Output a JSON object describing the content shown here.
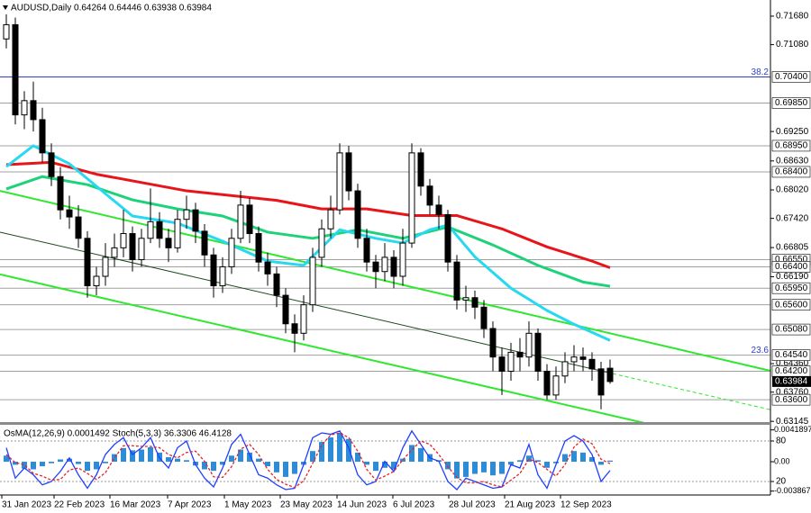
{
  "chart_data": [
    {
      "type": "candlestick",
      "title": "AUDUSD,Daily  0.64264 0.64446 0.63938 0.63984",
      "up_color": "#ffffff",
      "down_color": "#000000",
      "xlim": [
        -0.7,
        84.8
      ],
      "xticks": [
        {
          "value": -0.5,
          "label": "31 Jan 2023"
        },
        {
          "value": 5.3,
          "label": "22 Feb 2023"
        },
        {
          "value": 11.5,
          "label": "16 Mar 2023"
        },
        {
          "value": 17.9,
          "label": "7 Apr 2023"
        },
        {
          "value": 24.2,
          "label": "1 May 2023"
        },
        {
          "value": 30.4,
          "label": "23 May 2023"
        },
        {
          "value": 36.7,
          "label": "14 Jun 2023"
        },
        {
          "value": 42.9,
          "label": "6 Jul 2023"
        },
        {
          "value": 49.1,
          "label": "28 Jul 2023"
        },
        {
          "value": 55.3,
          "label": "21 Aug 2023"
        },
        {
          "value": 61.5,
          "label": "12 Sep 2023"
        }
      ],
      "ylim": [
        0.6311,
        0.7202
      ],
      "yticks": [
        {
          "value": 0.7168,
          "label": "0.71680"
        },
        {
          "value": 0.7108,
          "label": "0.71080"
        },
        {
          "value": 0.6925,
          "label": "0.69250"
        },
        {
          "value": 0.6863,
          "label": "0.68630"
        },
        {
          "value": 0.6802,
          "label": "0.68020"
        },
        {
          "value": 0.6742,
          "label": "0.67420"
        },
        {
          "value": 0.66805,
          "label": "0.66805"
        },
        {
          "value": 0.6619,
          "label": "0.66190"
        },
        {
          "value": 0.6436,
          "label": "0.64360"
        },
        {
          "value": 0.6376,
          "label": "0.63760"
        },
        {
          "value": 0.63145,
          "label": "0.63145"
        }
      ],
      "levels": [
        {
          "value": 0.704,
          "label": "0.70400",
          "color": "#2c3fcf"
        },
        {
          "value": 0.6985,
          "label": "0.69850",
          "color": "#a0a0a0"
        },
        {
          "value": 0.6895,
          "label": "0.68950",
          "color": "#a0a0a0"
        },
        {
          "value": 0.684,
          "label": "0.68400",
          "color": "#a0a0a0"
        },
        {
          "value": 0.6655,
          "label": "0.66550",
          "color": "#a0a0a0"
        },
        {
          "value": 0.664,
          "label": "0.66400",
          "color": "#a0a0a0"
        },
        {
          "value": 0.6595,
          "label": "0.65950",
          "color": "#a0a0a0"
        },
        {
          "value": 0.656,
          "label": "0.65600",
          "color": "#a0a0a0"
        },
        {
          "value": 0.6508,
          "label": "0.65080",
          "color": "#a0a0a0"
        },
        {
          "value": 0.6454,
          "label": "0.64540",
          "color": "#a0a0a0"
        },
        {
          "value": 0.642,
          "label": "0.64200",
          "color": "#a0a0a0"
        },
        {
          "value": 0.636,
          "label": "0.63600",
          "color": "#a0a0a0"
        }
      ],
      "last_price": {
        "value": 0.63984,
        "label": "0.63984"
      },
      "annotations": [
        {
          "label": "38.2",
          "value": 0.704,
          "color": "#2c3fcf"
        },
        {
          "label": "23.6",
          "value": 0.6454,
          "color": "#2c3fcf"
        }
      ],
      "channels": [
        {
          "color": "#2ee82e",
          "width": 2,
          "x": [
            -0.7,
            84.8
          ],
          "values": [
            0.68,
            0.6421
          ]
        },
        {
          "color": "#1d4a1d",
          "width": 1,
          "x": [
            -0.7,
            67.3
          ],
          "values": [
            0.6713,
            0.6415
          ]
        },
        {
          "color": "#2ee82e",
          "width": 1,
          "dashed": true,
          "x": [
            67.3,
            84.8
          ],
          "values": [
            0.6415,
            0.6339
          ]
        },
        {
          "color": "#2ee82e",
          "width": 2,
          "x": [
            -0.7,
            70.8
          ],
          "values": [
            0.6624,
            0.6311
          ]
        }
      ],
      "moving_averages": [
        {
          "color": "#e8141a",
          "x": [
            0,
            5,
            10,
            20,
            30,
            35,
            40,
            45,
            50,
            55,
            60,
            65,
            67
          ],
          "values": [
            0.6855,
            0.686,
            0.6835,
            0.68,
            0.678,
            0.6762,
            0.6762,
            0.6748,
            0.6748,
            0.672,
            0.6682,
            0.6652,
            0.6638
          ]
        },
        {
          "color": "#1ed27a",
          "x": [
            0,
            4,
            9,
            14,
            19,
            24,
            29,
            34,
            39,
            44,
            49,
            54,
            59,
            64,
            67
          ],
          "values": [
            0.6804,
            0.683,
            0.6813,
            0.6781,
            0.6762,
            0.6747,
            0.6713,
            0.67,
            0.6718,
            0.67,
            0.6724,
            0.6686,
            0.6643,
            0.6608,
            0.6599
          ]
        },
        {
          "color": "#26d9f0",
          "x": [
            0,
            3,
            7,
            11,
            14,
            19,
            24,
            29,
            33,
            37,
            41,
            44,
            47,
            49,
            52,
            56,
            60,
            63,
            67
          ],
          "values": [
            0.6851,
            0.6895,
            0.6857,
            0.6794,
            0.6747,
            0.6732,
            0.6694,
            0.6652,
            0.6643,
            0.6718,
            0.67,
            0.669,
            0.6718,
            0.6728,
            0.6661,
            0.6595,
            0.6548,
            0.6519,
            0.6485
          ]
        }
      ],
      "x": [
        0,
        1,
        2,
        3,
        4,
        5,
        6,
        7,
        8,
        9,
        10,
        11,
        12,
        13,
        14,
        15,
        16,
        17,
        18,
        19,
        20,
        21,
        22,
        23,
        24,
        25,
        26,
        27,
        28,
        29,
        30,
        31,
        32,
        33,
        34,
        35,
        36,
        37,
        38,
        39,
        40,
        41,
        42,
        43,
        44,
        45,
        46,
        47,
        48,
        49,
        50,
        51,
        52,
        53,
        54,
        55,
        56,
        57,
        58,
        59,
        60,
        61,
        62,
        63,
        64,
        65,
        66,
        67
      ],
      "ohlc": [
        [
          0.712,
          0.7172,
          0.71,
          0.715
        ],
        [
          0.715,
          0.7165,
          0.694,
          0.696
        ],
        [
          0.696,
          0.701,
          0.693,
          0.699
        ],
        [
          0.699,
          0.703,
          0.6925,
          0.695
        ],
        [
          0.695,
          0.6975,
          0.686,
          0.688
        ],
        [
          0.688,
          0.69,
          0.681,
          0.683
        ],
        [
          0.683,
          0.685,
          0.674,
          0.676
        ],
        [
          0.676,
          0.679,
          0.672,
          0.6745
        ],
        [
          0.6745,
          0.677,
          0.668,
          0.67
        ],
        [
          0.67,
          0.6715,
          0.6575,
          0.66
        ],
        [
          0.66,
          0.664,
          0.658,
          0.662
        ],
        [
          0.662,
          0.669,
          0.66,
          0.666
        ],
        [
          0.666,
          0.671,
          0.664,
          0.668
        ],
        [
          0.668,
          0.676,
          0.666,
          0.671
        ],
        [
          0.671,
          0.6725,
          0.663,
          0.6655
        ],
        [
          0.6655,
          0.672,
          0.664,
          0.67
        ],
        [
          0.67,
          0.6805,
          0.669,
          0.6735
        ],
        [
          0.6735,
          0.6755,
          0.668,
          0.67
        ],
        [
          0.67,
          0.672,
          0.665,
          0.668
        ],
        [
          0.668,
          0.676,
          0.667,
          0.674
        ],
        [
          0.674,
          0.679,
          0.672,
          0.676
        ],
        [
          0.676,
          0.6775,
          0.669,
          0.6715
        ],
        [
          0.6715,
          0.673,
          0.664,
          0.6665
        ],
        [
          0.6665,
          0.668,
          0.6575,
          0.66
        ],
        [
          0.66,
          0.666,
          0.6585,
          0.664
        ],
        [
          0.664,
          0.672,
          0.6625,
          0.67
        ],
        [
          0.67,
          0.68,
          0.669,
          0.677
        ],
        [
          0.677,
          0.6785,
          0.669,
          0.671
        ],
        [
          0.671,
          0.6725,
          0.663,
          0.665
        ],
        [
          0.665,
          0.667,
          0.66,
          0.6625
        ],
        [
          0.6625,
          0.664,
          0.6555,
          0.658
        ],
        [
          0.658,
          0.6595,
          0.65,
          0.652
        ],
        [
          0.652,
          0.654,
          0.646,
          0.65
        ],
        [
          0.65,
          0.658,
          0.6485,
          0.656
        ],
        [
          0.656,
          0.668,
          0.6545,
          0.666
        ],
        [
          0.666,
          0.674,
          0.664,
          0.672
        ],
        [
          0.672,
          0.679,
          0.67,
          0.676
        ],
        [
          0.676,
          0.69,
          0.675,
          0.688
        ],
        [
          0.688,
          0.6895,
          0.678,
          0.68
        ],
        [
          0.68,
          0.6815,
          0.668,
          0.67
        ],
        [
          0.67,
          0.672,
          0.663,
          0.665
        ],
        [
          0.665,
          0.6665,
          0.6595,
          0.663
        ],
        [
          0.663,
          0.669,
          0.661,
          0.666
        ],
        [
          0.666,
          0.6675,
          0.6595,
          0.662
        ],
        [
          0.662,
          0.672,
          0.66,
          0.669
        ],
        [
          0.669,
          0.69,
          0.668,
          0.688
        ],
        [
          0.688,
          0.689,
          0.679,
          0.681
        ],
        [
          0.681,
          0.6825,
          0.675,
          0.677
        ],
        [
          0.677,
          0.679,
          0.672,
          0.675
        ],
        [
          0.675,
          0.676,
          0.663,
          0.665
        ],
        [
          0.665,
          0.6665,
          0.655,
          0.657
        ],
        [
          0.657,
          0.66,
          0.6545,
          0.6575
        ],
        [
          0.6575,
          0.659,
          0.653,
          0.6555
        ],
        [
          0.6555,
          0.657,
          0.649,
          0.651
        ],
        [
          0.651,
          0.6525,
          0.642,
          0.645
        ],
        [
          0.645,
          0.647,
          0.637,
          0.642
        ],
        [
          0.642,
          0.648,
          0.64,
          0.646
        ],
        [
          0.646,
          0.649,
          0.642,
          0.645
        ],
        [
          0.645,
          0.6525,
          0.643,
          0.65
        ],
        [
          0.65,
          0.651,
          0.64,
          0.642
        ],
        [
          0.642,
          0.6435,
          0.636,
          0.637
        ],
        [
          0.637,
          0.643,
          0.636,
          0.641
        ],
        [
          0.641,
          0.646,
          0.6395,
          0.644
        ],
        [
          0.644,
          0.6475,
          0.642,
          0.645
        ],
        [
          0.645,
          0.647,
          0.642,
          0.6445
        ],
        [
          0.6445,
          0.646,
          0.64,
          0.6425
        ],
        [
          0.6425,
          0.644,
          0.634,
          0.637
        ],
        [
          0.64264,
          0.64446,
          0.63938,
          0.63984
        ]
      ]
    },
    {
      "type": "oscillator",
      "title": "OsMA(12,26,9) 0.0001492  Stoch(5,3,3) 36.3306 46.4128",
      "xlim": [
        -0.7,
        84.8
      ],
      "ylim": [
        -0.00438,
        0.00474
      ],
      "yticks": [
        0.0041897,
        {
          "value": 0,
          "label": "0.00"
        },
        -0.003867
      ],
      "y2lim": [
        0,
        102.7
      ],
      "y2ticks": [
        80,
        20
      ],
      "x": [
        0,
        1,
        2,
        3,
        4,
        5,
        6,
        7,
        8,
        9,
        10,
        11,
        12,
        13,
        14,
        15,
        16,
        17,
        18,
        19,
        20,
        21,
        22,
        23,
        24,
        25,
        26,
        27,
        28,
        29,
        30,
        31,
        32,
        33,
        34,
        35,
        36,
        37,
        38,
        39,
        40,
        41,
        42,
        43,
        44,
        45,
        46,
        47,
        48,
        49,
        50,
        51,
        52,
        53,
        54,
        55,
        56,
        57,
        58,
        59,
        60,
        61,
        62,
        63,
        64,
        65,
        66,
        67
      ],
      "series": [
        {
          "type": "bar",
          "color": "#2e8bd6",
          "values": [
            0.0008,
            -0.0004,
            -0.0009,
            -0.001,
            -0.0006,
            -0.0002,
            0.0003,
            0.0004,
            -0.0003,
            -0.0012,
            -0.001,
            -0.0002,
            0.001,
            0.0018,
            0.0015,
            0.0016,
            0.0019,
            0.0012,
            0.0006,
            0.0004,
            0.0002,
            -0.0005,
            -0.001,
            -0.0012,
            -0.0004,
            0.0008,
            0.0016,
            0.0012,
            0.0004,
            -0.0006,
            -0.0014,
            -0.002,
            -0.0016,
            -0.0004,
            0.0014,
            0.0026,
            0.0032,
            0.0038,
            0.003,
            0.0012,
            -0.0004,
            -0.0012,
            -0.0008,
            -0.001,
            0.0004,
            0.0022,
            0.0018,
            0.001,
            0.0002,
            -0.001,
            -0.0022,
            -0.002,
            -0.0016,
            -0.0014,
            -0.0018,
            -0.0016,
            -0.0004,
            0.0002,
            0.0008,
            0.0002,
            -0.0008,
            -0.0002,
            0.001,
            0.0014,
            0.0012,
            0.0006,
            -0.0004,
            0.0001492
          ]
        },
        {
          "type": "line",
          "axis": "y2",
          "color": "#1f3fff",
          "values": [
            70,
            25,
            40,
            30,
            15,
            20,
            35,
            55,
            30,
            10,
            30,
            60,
            75,
            85,
            60,
            70,
            85,
            55,
            40,
            70,
            80,
            45,
            25,
            12,
            40,
            75,
            90,
            60,
            30,
            25,
            15,
            8,
            10,
            45,
            85,
            92,
            90,
            95,
            70,
            30,
            15,
            20,
            50,
            35,
            70,
            95,
            75,
            55,
            50,
            20,
            8,
            25,
            20,
            15,
            10,
            12,
            45,
            40,
            75,
            30,
            10,
            45,
            80,
            88,
            80,
            60,
            20,
            36.3306
          ]
        },
        {
          "type": "line",
          "axis": "y2",
          "dashed": true,
          "color": "#e0262a",
          "values": [
            60,
            48,
            45,
            32,
            28,
            22,
            23,
            37,
            40,
            32,
            23,
            33,
            55,
            73,
            73,
            72,
            72,
            70,
            60,
            55,
            63,
            65,
            50,
            27,
            26,
            42,
            68,
            75,
            60,
            38,
            23,
            16,
            11,
            21,
            47,
            74,
            89,
            92,
            85,
            65,
            38,
            22,
            28,
            35,
            52,
            67,
            80,
            75,
            60,
            42,
            26,
            18,
            18,
            20,
            15,
            12,
            22,
            32,
            53,
            48,
            38,
            28,
            45,
            71,
            83,
            76,
            53,
            46.4128
          ]
        }
      ]
    }
  ]
}
